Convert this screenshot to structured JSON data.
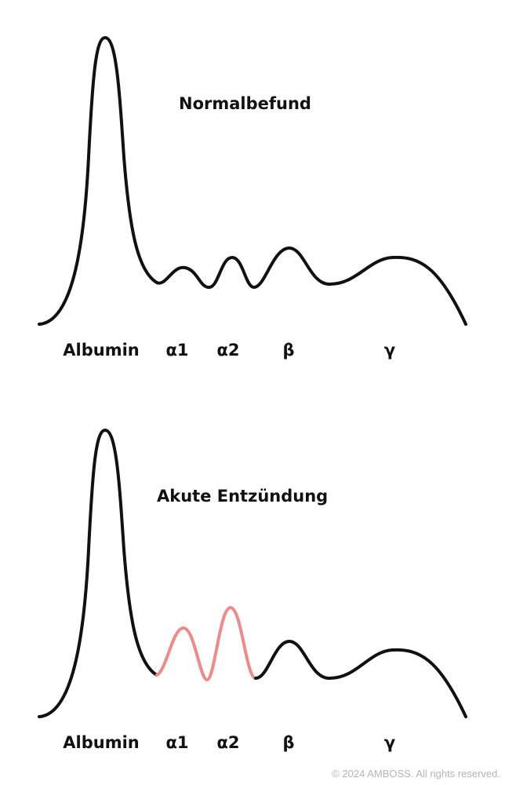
{
  "panels": [
    {
      "title": "Normalbefund",
      "labels": {
        "albumin": "Albumin",
        "alpha1": "α1",
        "alpha2": "α2",
        "beta": "β",
        "gamma": "γ"
      }
    },
    {
      "title": "Akute Entzündung",
      "labels": {
        "albumin": "Albumin",
        "alpha1": "α1",
        "alpha2": "α2",
        "beta": "β",
        "gamma": "γ"
      }
    }
  ],
  "colors": {
    "curve": "#111111",
    "highlight": "#ee8a8a",
    "copyright": "#b5b5b5"
  },
  "footer": {
    "copyright": "© 2024 AMBOSS. All rights reserved."
  }
}
